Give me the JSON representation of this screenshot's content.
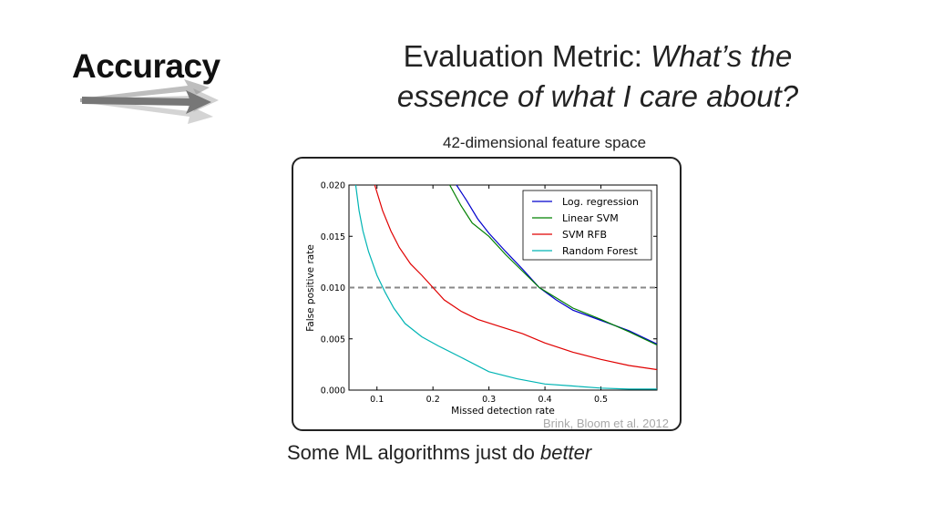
{
  "slide": {
    "section": "Accuracy",
    "heading_prefix": "Evaluation Metric: ",
    "heading_question_1": "What’s the",
    "heading_question_2": "essence of what I care about?",
    "subtitle": "42-dimensional feature space",
    "citation": "Brink, Bloom et al. 2012",
    "caption_prefix": "Some ML algorithms just do ",
    "caption_emphasis": "better"
  },
  "chart_data": {
    "type": "line",
    "xlabel": "Missed detection rate",
    "ylabel": "False positive rate",
    "xlim": [
      0.05,
      0.6
    ],
    "ylim": [
      0.0,
      0.02
    ],
    "xticks": [
      0.1,
      0.2,
      0.3,
      0.4,
      0.5
    ],
    "yticks": [
      0.0,
      0.005,
      0.01,
      0.015,
      0.02
    ],
    "xtick_labels": [
      "0.1",
      "0.2",
      "0.3",
      "0.4",
      "0.5"
    ],
    "ytick_labels": [
      "0.000",
      "0.005",
      "0.010",
      "0.015",
      "0.020"
    ],
    "grid": false,
    "legend_position": "top-right",
    "reference_line": {
      "y": 0.01,
      "style": "dashed",
      "color": "#888888"
    },
    "series": [
      {
        "name": "Log. regression",
        "color": "#0000cc",
        "x": [
          0.242,
          0.26,
          0.28,
          0.3,
          0.33,
          0.36,
          0.39,
          0.42,
          0.45,
          0.5,
          0.55,
          0.6
        ],
        "y": [
          0.02,
          0.0185,
          0.0167,
          0.0153,
          0.0135,
          0.0118,
          0.01,
          0.0088,
          0.0078,
          0.0068,
          0.0058,
          0.0045
        ]
      },
      {
        "name": "Linear SVM",
        "color": "#008000",
        "x": [
          0.23,
          0.25,
          0.27,
          0.3,
          0.33,
          0.36,
          0.39,
          0.42,
          0.45,
          0.5,
          0.55,
          0.6
        ],
        "y": [
          0.02,
          0.018,
          0.0163,
          0.015,
          0.0132,
          0.0116,
          0.01,
          0.009,
          0.008,
          0.0069,
          0.0057,
          0.0044
        ]
      },
      {
        "name": "SVM RFB",
        "color": "#e00000",
        "x": [
          0.096,
          0.11,
          0.125,
          0.14,
          0.16,
          0.18,
          0.2,
          0.22,
          0.25,
          0.28,
          0.32,
          0.36,
          0.4,
          0.45,
          0.5,
          0.55,
          0.6
        ],
        "y": [
          0.02,
          0.0175,
          0.0155,
          0.0139,
          0.0123,
          0.0112,
          0.01,
          0.0088,
          0.0077,
          0.0069,
          0.0062,
          0.0055,
          0.0046,
          0.0037,
          0.003,
          0.0024,
          0.002
        ]
      },
      {
        "name": "Random Forest",
        "color": "#00b4b4",
        "x": [
          0.062,
          0.068,
          0.075,
          0.085,
          0.1,
          0.115,
          0.13,
          0.15,
          0.18,
          0.21,
          0.25,
          0.3,
          0.35,
          0.4,
          0.45,
          0.5,
          0.55,
          0.6
        ],
        "y": [
          0.02,
          0.0175,
          0.0155,
          0.0135,
          0.0112,
          0.0095,
          0.008,
          0.0065,
          0.0052,
          0.0043,
          0.0032,
          0.0018,
          0.0011,
          0.0006,
          0.0004,
          0.0002,
          0.0001,
          0.0001
        ]
      }
    ]
  }
}
